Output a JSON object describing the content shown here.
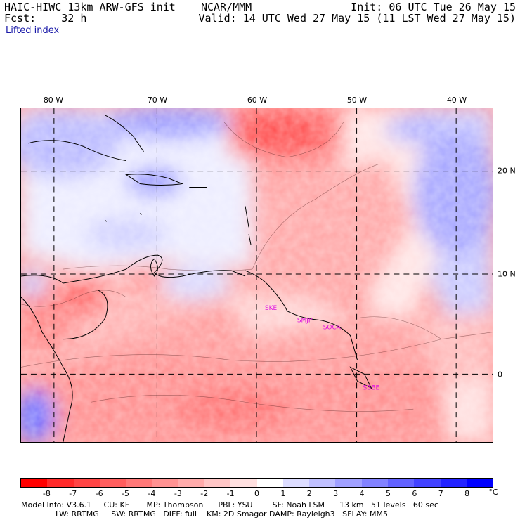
{
  "header": {
    "title": "HAIC-HIWC 13km ARW-GFS init    NCAR/MMM",
    "init": "Init: 06 UTC Tue 26 May 15",
    "fcst": "Fcst:    32 h",
    "valid": "Valid: 14 UTC Wed 27 May 15 (11 LST Wed 27 May 15)",
    "field": "Lifted index"
  },
  "axes": {
    "lon_labels": [
      "80 W",
      "70 W",
      "60 W",
      "50 W",
      "40 W"
    ],
    "lat_labels": [
      "20 N",
      "10 N",
      "0"
    ]
  },
  "stations": [
    "SKEI",
    "SMJP",
    "SOCA",
    "SBBE"
  ],
  "colorbar": {
    "unit": "°C",
    "ticks": [
      "-8",
      "-7",
      "-6",
      "-5",
      "-4",
      "-3",
      "-2",
      "-1",
      "0",
      "1",
      "2",
      "3",
      "4",
      "5",
      "6",
      "7",
      "8"
    ],
    "colors": [
      "#ff0000",
      "#ff2a2a",
      "#ff4545",
      "#ff5e5e",
      "#ff7878",
      "#ff9292",
      "#ffabab",
      "#ffc6c6",
      "#ffe0e0",
      "#ffffff",
      "#dcdcff",
      "#c0c0ff",
      "#a0a0ff",
      "#8282ff",
      "#6262ff",
      "#4242ff",
      "#2222ff",
      "#0000ff"
    ]
  },
  "info": {
    "line1": "Model Info: V3.6.1     CU: KF       MP: Thompson      PBL: YSU        SF: Noah LSM      13 km   51 levels   60 sec",
    "line2": "              LW: RRTMG     SW: RRTMG   DIFF: full    KM: 2D Smagor DAMP: Rayleigh3   SFLAY: MM5"
  },
  "chart_data": {
    "type": "heatmap",
    "title": "Lifted index",
    "unit": "°C",
    "x_range_lon": [
      -83,
      -36
    ],
    "y_range_lat": [
      -7,
      26
    ],
    "colorbar_range": [
      -8,
      8
    ]
  }
}
